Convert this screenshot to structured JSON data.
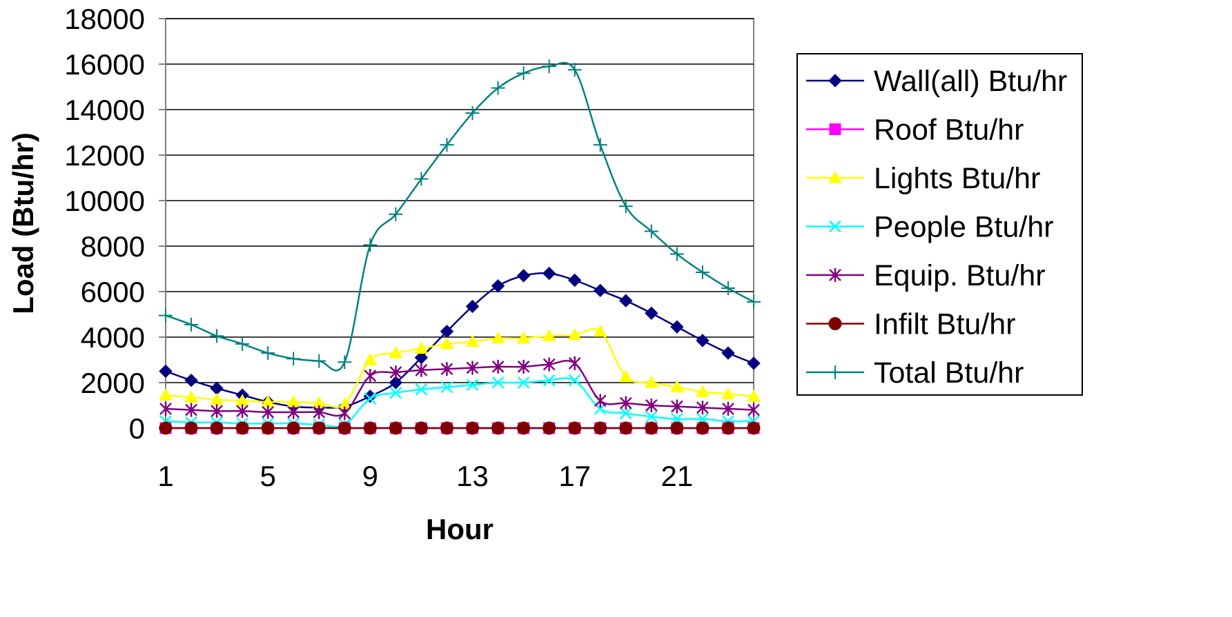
{
  "chart_data": {
    "type": "line",
    "title": "",
    "xlabel": "Hour",
    "ylabel": "Load (Btu/hr)",
    "x": [
      1,
      2,
      3,
      4,
      5,
      6,
      7,
      8,
      9,
      10,
      11,
      12,
      13,
      14,
      15,
      16,
      17,
      18,
      19,
      20,
      21,
      22,
      23,
      24
    ],
    "x_ticks": [
      "1",
      "5",
      "9",
      "13",
      "17",
      "21"
    ],
    "y_ticks": [
      "0",
      "2000",
      "4000",
      "6000",
      "8000",
      "10000",
      "12000",
      "14000",
      "16000",
      "18000"
    ],
    "xlim": [
      1,
      24
    ],
    "ylim": [
      0,
      18000
    ],
    "grid": "horizontal",
    "legend_position": "right",
    "series": [
      {
        "name": "Wall(all) Btu/hr",
        "color": "#000080",
        "marker": "diamond",
        "values": [
          2500,
          2100,
          1750,
          1450,
          1150,
          950,
          900,
          950,
          1400,
          2000,
          3100,
          4250,
          5350,
          6250,
          6700,
          6800,
          6500,
          6050,
          5600,
          5050,
          4450,
          3850,
          3300,
          2850
        ]
      },
      {
        "name": "Roof Btu/hr",
        "color": "#ff00ff",
        "marker": "square",
        "values": [
          0,
          0,
          0,
          0,
          0,
          0,
          0,
          0,
          0,
          0,
          0,
          0,
          0,
          0,
          0,
          0,
          0,
          0,
          0,
          0,
          0,
          0,
          0,
          0
        ]
      },
      {
        "name": "Lights Btu/hr",
        "color": "#ffff00",
        "marker": "triangle",
        "values": [
          1450,
          1350,
          1250,
          1200,
          1150,
          1150,
          1100,
          1050,
          3000,
          3300,
          3500,
          3700,
          3800,
          3950,
          3950,
          4050,
          4100,
          4250,
          2250,
          2000,
          1800,
          1600,
          1500,
          1400
        ]
      },
      {
        "name": "People Btu/hr",
        "color": "#00ffff",
        "marker": "x",
        "values": [
          300,
          250,
          250,
          200,
          200,
          200,
          150,
          150,
          1300,
          1550,
          1700,
          1800,
          1900,
          2000,
          2000,
          2100,
          2100,
          850,
          650,
          500,
          400,
          400,
          300,
          300
        ]
      },
      {
        "name": "Equip. Btu/hr",
        "color": "#800080",
        "marker": "asterisk",
        "values": [
          850,
          800,
          750,
          750,
          700,
          700,
          700,
          650,
          2300,
          2450,
          2550,
          2600,
          2650,
          2700,
          2700,
          2800,
          2850,
          1200,
          1100,
          1000,
          950,
          900,
          850,
          800
        ]
      },
      {
        "name": "Infilt Btu/hr",
        "color": "#800000",
        "marker": "circle",
        "values": [
          0,
          0,
          0,
          0,
          0,
          0,
          0,
          0,
          0,
          0,
          0,
          0,
          0,
          0,
          0,
          0,
          0,
          0,
          0,
          0,
          0,
          0,
          0,
          0
        ]
      },
      {
        "name": "Total Btu/hr",
        "color": "#008080",
        "marker": "plus",
        "values": [
          4950,
          4550,
          4050,
          3700,
          3300,
          3050,
          2950,
          2900,
          8050,
          9400,
          10950,
          12450,
          13850,
          14950,
          15600,
          15900,
          15750,
          12450,
          9750,
          8650,
          7650,
          6850,
          6150,
          5550
        ]
      }
    ]
  }
}
